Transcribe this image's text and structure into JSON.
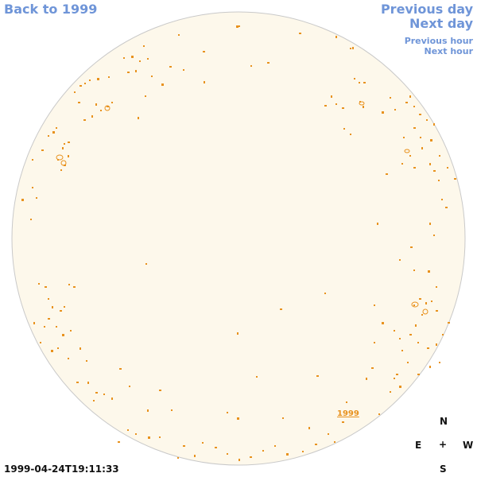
{
  "nav": {
    "back_label": "Back to 1999",
    "previous_day_label": "Previous day",
    "next_day_label": "Next day",
    "previous_hour_label": "Previous hour",
    "next_hour_label": "Next hour"
  },
  "map": {
    "disk_fill": "#fdf8eb",
    "disk_stroke": "#c9c9c9",
    "region_color": "#e8921e",
    "region_label": "1999"
  },
  "compass": {
    "north": "N",
    "east": "E",
    "center": "+",
    "west": "W",
    "south": "S"
  },
  "timestamp": "1999-04-24T19:11:33"
}
